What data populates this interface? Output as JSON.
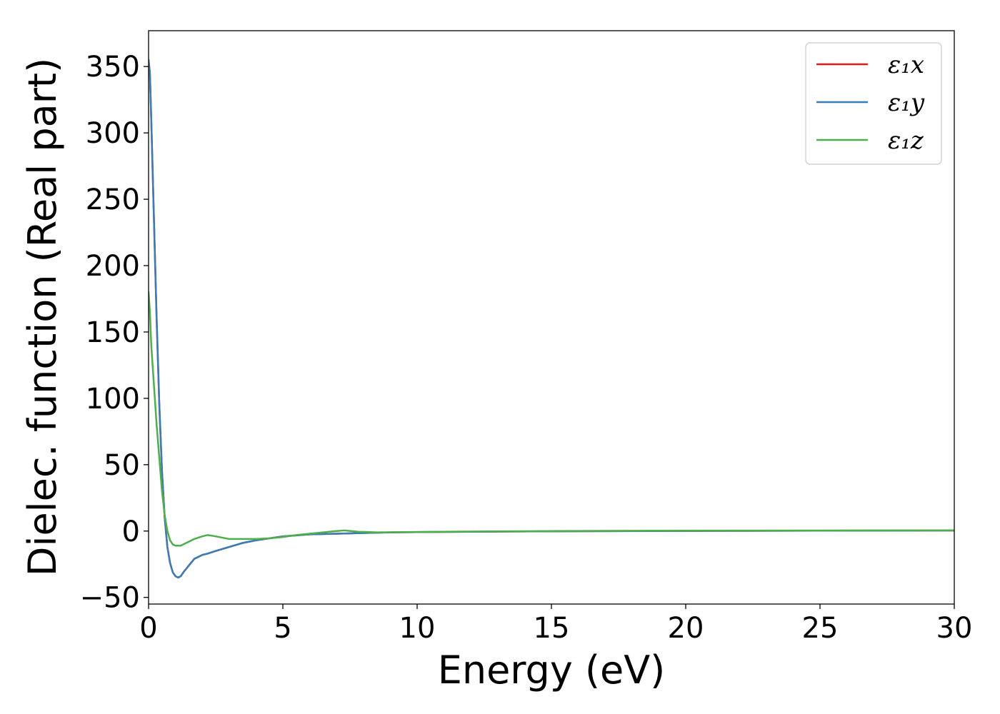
{
  "chart_data": {
    "type": "line",
    "title": "",
    "xlabel": "Energy (eV)",
    "ylabel": "Dielec. function (Real part)",
    "xlim": [
      0,
      30
    ],
    "ylim": [
      -55,
      377
    ],
    "xticks": [
      0,
      5,
      10,
      15,
      20,
      25,
      30
    ],
    "yticks": [
      -50,
      0,
      50,
      100,
      150,
      200,
      250,
      300,
      350
    ],
    "ytick_labels": [
      "−50",
      "0",
      "50",
      "100",
      "150",
      "200",
      "250",
      "300",
      "350"
    ],
    "grid": false,
    "legend_position": "top-right",
    "series": [
      {
        "name": "ε₁x",
        "color": "#e41a1c",
        "x": [
          0,
          0.05,
          0.1,
          0.2,
          0.3,
          0.4,
          0.5,
          0.6,
          0.7,
          0.8,
          0.9,
          1.0,
          1.1,
          1.2,
          1.3,
          1.5,
          1.7,
          2.0,
          2.2,
          2.5,
          3.0,
          3.5,
          4.0,
          5.0,
          6.0,
          7.0,
          8.0,
          9.0,
          10,
          12,
          15,
          20,
          25,
          30
        ],
        "y": [
          355,
          345,
          310,
          235,
          160,
          95,
          45,
          10,
          -12,
          -24,
          -31,
          -34,
          -35,
          -34,
          -31,
          -26,
          -21,
          -18,
          -17,
          -15,
          -12,
          -9,
          -7,
          -4,
          -2.5,
          -2,
          -1.5,
          -1,
          -0.8,
          -0.5,
          -0.2,
          0.1,
          0.3,
          0.4
        ]
      },
      {
        "name": "ε₁y",
        "color": "#377eb8",
        "x": [
          0,
          0.05,
          0.1,
          0.2,
          0.3,
          0.4,
          0.5,
          0.6,
          0.7,
          0.8,
          0.9,
          1.0,
          1.1,
          1.2,
          1.3,
          1.5,
          1.7,
          2.0,
          2.2,
          2.5,
          3.0,
          3.5,
          4.0,
          5.0,
          6.0,
          7.0,
          8.0,
          9.0,
          10,
          12,
          15,
          20,
          25,
          30
        ],
        "y": [
          355,
          345,
          310,
          235,
          160,
          95,
          45,
          10,
          -12,
          -24,
          -31,
          -34,
          -35,
          -34,
          -31,
          -26,
          -21,
          -18,
          -17,
          -15,
          -12,
          -9,
          -7,
          -4,
          -2.5,
          -2,
          -1.5,
          -1,
          -0.8,
          -0.5,
          -0.2,
          0.1,
          0.3,
          0.4
        ]
      },
      {
        "name": "ε₁z",
        "color": "#4daf4a",
        "x": [
          0,
          0.05,
          0.1,
          0.2,
          0.3,
          0.4,
          0.5,
          0.6,
          0.7,
          0.8,
          0.9,
          1.0,
          1.2,
          1.4,
          1.7,
          2.0,
          2.2,
          2.5,
          3.0,
          3.5,
          4.0,
          4.5,
          5.0,
          5.5,
          6.0,
          6.5,
          7.0,
          7.3,
          7.8,
          8.5,
          9.5,
          11,
          15,
          20,
          25,
          30
        ],
        "y": [
          180,
          165,
          140,
          110,
          80,
          55,
          30,
          12,
          0,
          -7,
          -10,
          -11,
          -11,
          -9,
          -6,
          -4,
          -3,
          -4,
          -6,
          -6,
          -6,
          -5.5,
          -4.5,
          -3,
          -2,
          -1,
          0,
          0.5,
          -0.5,
          -1,
          -0.8,
          -0.5,
          0,
          0.3,
          0.4,
          0.5
        ]
      }
    ]
  }
}
